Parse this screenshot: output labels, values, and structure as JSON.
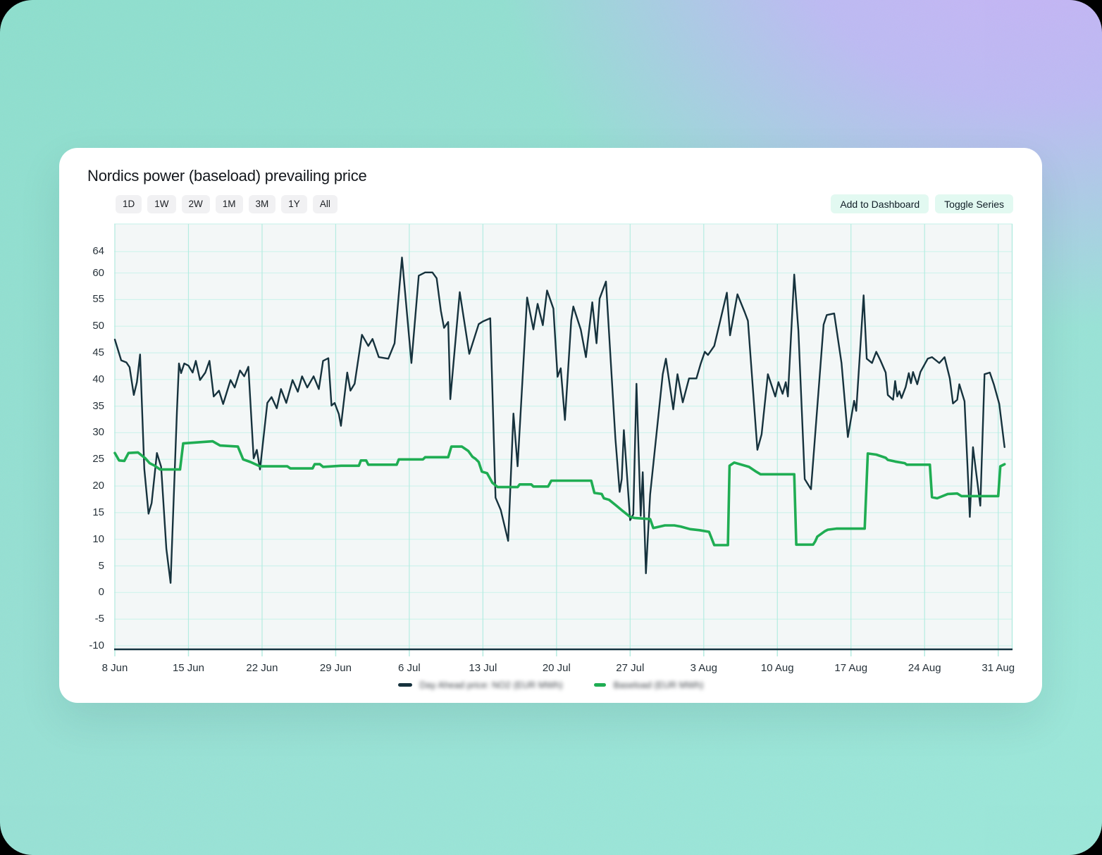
{
  "window": {
    "title": "Nordics power (baseload) prevailing price"
  },
  "toolbar": {
    "ranges": [
      "1D",
      "1W",
      "2W",
      "1M",
      "3M",
      "1Y",
      "All"
    ],
    "actions": [
      "Add to Dashboard",
      "Toggle Series"
    ]
  },
  "chart_data": {
    "type": "line",
    "title": "Nordics power (baseload) prevailing price",
    "xlabel": "",
    "ylabel": "",
    "x_unit": "days (0 = 8 Jun)",
    "grid": true,
    "legend_position": "bottom",
    "ylim": [
      -10.8,
      69.2
    ],
    "xlim_days": [
      0,
      85.4
    ],
    "y_ticks": [
      64,
      60,
      55,
      50,
      45,
      40,
      35,
      30,
      25,
      20,
      15,
      10,
      5,
      0,
      -5,
      -10
    ],
    "x_ticks": [
      {
        "day": 0,
        "label": "8 Jun"
      },
      {
        "day": 7,
        "label": "15 Jun"
      },
      {
        "day": 14,
        "label": "22 Jun"
      },
      {
        "day": 21,
        "label": "29 Jun"
      },
      {
        "day": 28,
        "label": "6 Jul"
      },
      {
        "day": 35,
        "label": "13 Jul"
      },
      {
        "day": 42,
        "label": "20 Jul"
      },
      {
        "day": 49,
        "label": "27 Jul"
      },
      {
        "day": 56,
        "label": "3 Aug"
      },
      {
        "day": 63,
        "label": "10 Aug"
      },
      {
        "day": 70,
        "label": "17 Aug"
      },
      {
        "day": 77,
        "label": "24 Aug"
      },
      {
        "day": 84,
        "label": "31 Aug"
      }
    ],
    "colors": {
      "plot_bg": "#f3f7f7",
      "grid_h": "#cff3ec",
      "grid_v": "#b5ece1",
      "axis_line": "#143340",
      "tick_text": "#27323a"
    },
    "series": [
      {
        "name": "Day Ahead price: NO2 (EUR MWh)",
        "label_redacted": true,
        "color": "#16323d",
        "stroke_width": 2.4,
        "points": [
          [
            0,
            47.5
          ],
          [
            0.6,
            43.6
          ],
          [
            1.1,
            43.2
          ],
          [
            1.4,
            42.3
          ],
          [
            1.8,
            37.1
          ],
          [
            2.1,
            39.5
          ],
          [
            2.4,
            44.7
          ],
          [
            2.8,
            23.2
          ],
          [
            3.2,
            14.8
          ],
          [
            3.5,
            16.8
          ],
          [
            4,
            26.2
          ],
          [
            4.4,
            23.6
          ],
          [
            4.9,
            8.2
          ],
          [
            5.3,
            1.8
          ],
          [
            5.9,
            34
          ],
          [
            6.1,
            43
          ],
          [
            6.3,
            41.2
          ],
          [
            6.6,
            43
          ],
          [
            7,
            42.6
          ],
          [
            7.4,
            41.3
          ],
          [
            7.7,
            43.5
          ],
          [
            8.1,
            39.9
          ],
          [
            8.6,
            41.3
          ],
          [
            9,
            43.5
          ],
          [
            9.4,
            36.8
          ],
          [
            9.9,
            37.9
          ],
          [
            10.3,
            35.4
          ],
          [
            11,
            39.9
          ],
          [
            11.4,
            38.5
          ],
          [
            11.9,
            41.7
          ],
          [
            12.3,
            40.6
          ],
          [
            12.7,
            42.4
          ],
          [
            13.2,
            25.2
          ],
          [
            13.5,
            26.8
          ],
          [
            13.8,
            23.1
          ],
          [
            14.5,
            35.6
          ],
          [
            14.9,
            36.7
          ],
          [
            15.4,
            34.6
          ],
          [
            15.8,
            38.2
          ],
          [
            16.3,
            35.6
          ],
          [
            16.9,
            39.9
          ],
          [
            17.4,
            37.7
          ],
          [
            17.8,
            40.6
          ],
          [
            18.3,
            38.5
          ],
          [
            18.9,
            40.6
          ],
          [
            19.4,
            38.2
          ],
          [
            19.8,
            43.5
          ],
          [
            20.3,
            44
          ],
          [
            20.6,
            35.1
          ],
          [
            20.9,
            35.6
          ],
          [
            21.3,
            33.5
          ],
          [
            21.5,
            31.3
          ],
          [
            22.1,
            41.3
          ],
          [
            22.4,
            37.9
          ],
          [
            22.8,
            39.2
          ],
          [
            23.5,
            48.4
          ],
          [
            24.1,
            46.3
          ],
          [
            24.5,
            47.6
          ],
          [
            25.1,
            44.2
          ],
          [
            26,
            43.9
          ],
          [
            26.6,
            46.8
          ],
          [
            27.3,
            62.9
          ],
          [
            28.2,
            43.1
          ],
          [
            28.9,
            59.5
          ],
          [
            29.5,
            60.1
          ],
          [
            30.2,
            60.1
          ],
          [
            30.6,
            59
          ],
          [
            31,
            52.9
          ],
          [
            31.3,
            49.7
          ],
          [
            31.7,
            50.8
          ],
          [
            31.9,
            36.3
          ],
          [
            32.8,
            56.4
          ],
          [
            33.7,
            44.8
          ],
          [
            34.6,
            50.4
          ],
          [
            35,
            50.9
          ],
          [
            35.7,
            51.5
          ],
          [
            36.2,
            17.8
          ],
          [
            36.7,
            15.5
          ],
          [
            37.4,
            9.7
          ],
          [
            37.9,
            33.6
          ],
          [
            38.3,
            23.7
          ],
          [
            39.2,
            55.4
          ],
          [
            39.8,
            49.4
          ],
          [
            40.2,
            54.2
          ],
          [
            40.7,
            50.2
          ],
          [
            41.1,
            56.7
          ],
          [
            41.7,
            53.3
          ],
          [
            42.1,
            40.5
          ],
          [
            42.4,
            42.1
          ],
          [
            42.8,
            32.4
          ],
          [
            43.4,
            51.1
          ],
          [
            43.6,
            53.7
          ],
          [
            44.3,
            49.4
          ],
          [
            44.8,
            44.2
          ],
          [
            45.4,
            54.5
          ],
          [
            45.8,
            46.8
          ],
          [
            46.1,
            55.2
          ],
          [
            46.7,
            58.4
          ],
          [
            47.6,
            28.9
          ],
          [
            48,
            18.9
          ],
          [
            48.2,
            21.3
          ],
          [
            48.4,
            30.5
          ],
          [
            49,
            13.6
          ],
          [
            49.3,
            14.7
          ],
          [
            49.6,
            39.2
          ],
          [
            50,
            14.4
          ],
          [
            50.2,
            22.6
          ],
          [
            50.5,
            3.6
          ],
          [
            50.9,
            18.4
          ],
          [
            52.1,
            41
          ],
          [
            52.4,
            43.9
          ],
          [
            53.1,
            34.4
          ],
          [
            53.5,
            41
          ],
          [
            54,
            35.7
          ],
          [
            54.6,
            40.2
          ],
          [
            55.3,
            40.2
          ],
          [
            55.7,
            42.9
          ],
          [
            56.1,
            45.2
          ],
          [
            56.4,
            44.6
          ],
          [
            57,
            46.3
          ],
          [
            58.2,
            56.3
          ],
          [
            58.5,
            48.3
          ],
          [
            59.2,
            56
          ],
          [
            59.9,
            52.6
          ],
          [
            60.2,
            51
          ],
          [
            61.1,
            26.8
          ],
          [
            61.5,
            29.7
          ],
          [
            62.1,
            41
          ],
          [
            62.8,
            36.8
          ],
          [
            63.1,
            39.5
          ],
          [
            63.5,
            37.3
          ],
          [
            63.8,
            39.5
          ],
          [
            64,
            36.8
          ],
          [
            64.6,
            59.7
          ],
          [
            65,
            49.2
          ],
          [
            65.6,
            21.3
          ],
          [
            66.2,
            19.4
          ],
          [
            67.4,
            50.3
          ],
          [
            67.7,
            52.1
          ],
          [
            68.4,
            52.4
          ],
          [
            69.1,
            43.1
          ],
          [
            69.7,
            29.2
          ],
          [
            70.3,
            36
          ],
          [
            70.5,
            34.1
          ],
          [
            71.2,
            55.8
          ],
          [
            71.5,
            43.9
          ],
          [
            72,
            43.1
          ],
          [
            72.4,
            45.2
          ],
          [
            72.8,
            43.6
          ],
          [
            73.3,
            41.3
          ],
          [
            73.5,
            37.1
          ],
          [
            74,
            36.2
          ],
          [
            74.2,
            39.7
          ],
          [
            74.4,
            36.8
          ],
          [
            74.6,
            37.8
          ],
          [
            74.8,
            36.5
          ],
          [
            75.2,
            38.6
          ],
          [
            75.5,
            41.2
          ],
          [
            75.7,
            39.3
          ],
          [
            75.9,
            41.4
          ],
          [
            76.3,
            39.1
          ],
          [
            76.6,
            41.4
          ],
          [
            77.3,
            43.9
          ],
          [
            77.7,
            44.2
          ],
          [
            78.4,
            43.1
          ],
          [
            78.9,
            44.2
          ],
          [
            79.4,
            40.2
          ],
          [
            79.7,
            35.5
          ],
          [
            80.1,
            36.2
          ],
          [
            80.3,
            39.1
          ],
          [
            80.8,
            35.9
          ],
          [
            81.3,
            14.2
          ],
          [
            81.6,
            27.3
          ],
          [
            82.3,
            16.3
          ],
          [
            82.7,
            41
          ],
          [
            83.2,
            41.3
          ],
          [
            83.6,
            39
          ],
          [
            84.1,
            35.4
          ],
          [
            84.6,
            27.3
          ]
        ]
      },
      {
        "name": "Baseload (EUR MWh)",
        "label_redacted": true,
        "color": "#1fad53",
        "stroke_width": 3.6,
        "points": [
          [
            0,
            26.2
          ],
          [
            0.4,
            24.8
          ],
          [
            0.9,
            24.7
          ],
          [
            1.3,
            26.2
          ],
          [
            2.2,
            26.3
          ],
          [
            2.9,
            25.2
          ],
          [
            3.3,
            24.3
          ],
          [
            3.8,
            23.8
          ],
          [
            4.3,
            23.1
          ],
          [
            6.2,
            23.1
          ],
          [
            6.5,
            28
          ],
          [
            9.3,
            28.4
          ],
          [
            10,
            27.6
          ],
          [
            11.7,
            27.4
          ],
          [
            12.2,
            25
          ],
          [
            12.9,
            24.5
          ],
          [
            13.8,
            23.7
          ],
          [
            16.4,
            23.7
          ],
          [
            16.7,
            23.3
          ],
          [
            18.8,
            23.3
          ],
          [
            19,
            24.1
          ],
          [
            19.5,
            24.1
          ],
          [
            19.8,
            23.6
          ],
          [
            21.5,
            23.8
          ],
          [
            23.2,
            23.8
          ],
          [
            23.4,
            24.8
          ],
          [
            23.9,
            24.8
          ],
          [
            24.1,
            24
          ],
          [
            26.8,
            24
          ],
          [
            27,
            25
          ],
          [
            29.3,
            25
          ],
          [
            29.5,
            25.4
          ],
          [
            31.7,
            25.4
          ],
          [
            32,
            27.4
          ],
          [
            33,
            27.4
          ],
          [
            33.6,
            26.6
          ],
          [
            34,
            25.5
          ],
          [
            34.3,
            25.1
          ],
          [
            34.6,
            24.5
          ],
          [
            34.9,
            22.7
          ],
          [
            35.4,
            22.4
          ],
          [
            35.9,
            20.6
          ],
          [
            36.4,
            19.8
          ],
          [
            38.3,
            19.8
          ],
          [
            38.5,
            20.3
          ],
          [
            39.6,
            20.3
          ],
          [
            39.8,
            19.9
          ],
          [
            41.2,
            19.9
          ],
          [
            41.5,
            21
          ],
          [
            45.3,
            21
          ],
          [
            45.6,
            18.7
          ],
          [
            46.3,
            18.5
          ],
          [
            46.5,
            17.7
          ],
          [
            47,
            17.4
          ],
          [
            47.7,
            16.3
          ],
          [
            48.3,
            15.3
          ],
          [
            49,
            14.2
          ],
          [
            49.4,
            14
          ],
          [
            50.9,
            13.8
          ],
          [
            51.2,
            12.1
          ],
          [
            52.3,
            12.6
          ],
          [
            53.2,
            12.6
          ],
          [
            53.8,
            12.4
          ],
          [
            54.7,
            11.9
          ],
          [
            55.6,
            11.7
          ],
          [
            56.5,
            11.4
          ],
          [
            57,
            8.9
          ],
          [
            58.3,
            8.9
          ],
          [
            58.45,
            23.8
          ],
          [
            58.9,
            24.4
          ],
          [
            60.3,
            23.6
          ],
          [
            60.9,
            22.8
          ],
          [
            61.4,
            22.2
          ],
          [
            64.6,
            22.2
          ],
          [
            64.8,
            9
          ],
          [
            66.4,
            9
          ],
          [
            66.6,
            9.6
          ],
          [
            66.8,
            10.5
          ],
          [
            67.5,
            11.5
          ],
          [
            67.8,
            11.8
          ],
          [
            68.6,
            12
          ],
          [
            71.3,
            12
          ],
          [
            71.6,
            26.1
          ],
          [
            72.4,
            25.9
          ],
          [
            73.3,
            25.3
          ],
          [
            73.5,
            24.9
          ],
          [
            74.2,
            24.6
          ],
          [
            75.1,
            24.3
          ],
          [
            75.3,
            24
          ],
          [
            77.5,
            24
          ],
          [
            77.7,
            17.9
          ],
          [
            78.2,
            17.7
          ],
          [
            79.2,
            18.5
          ],
          [
            80.1,
            18.6
          ],
          [
            80.5,
            18.1
          ],
          [
            84,
            18.1
          ],
          [
            84.2,
            23.7
          ],
          [
            84.6,
            24.1
          ]
        ]
      }
    ]
  }
}
